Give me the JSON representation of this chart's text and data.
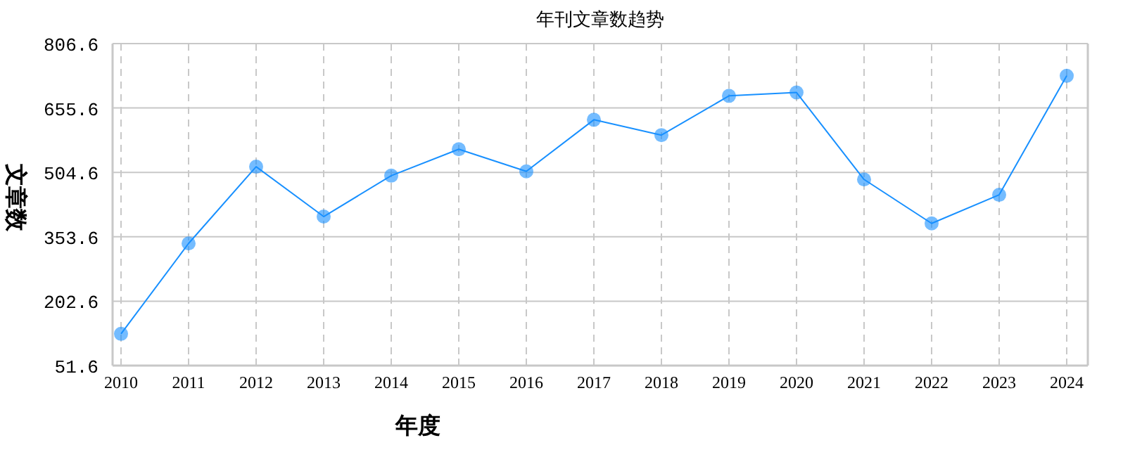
{
  "chart_data": {
    "type": "line",
    "title": "年刊文章数趋势",
    "xlabel": "年度",
    "ylabel": "文章数",
    "categories": [
      "2010",
      "2011",
      "2012",
      "2013",
      "2014",
      "2015",
      "2016",
      "2017",
      "2018",
      "2019",
      "2020",
      "2021",
      "2022",
      "2023",
      "2024"
    ],
    "series": [
      {
        "color": "#1890ff",
        "values": [
          126,
          338,
          518,
          401,
          497,
          559,
          507,
          628,
          592,
          684,
          692,
          488,
          385,
          452,
          731
        ]
      }
    ],
    "ylim": [
      51.6,
      806.6
    ],
    "yticks": [
      51.6,
      202.6,
      353.6,
      504.6,
      655.6,
      806.6
    ],
    "grid": true,
    "marker": "circle",
    "line_style": "solid"
  }
}
